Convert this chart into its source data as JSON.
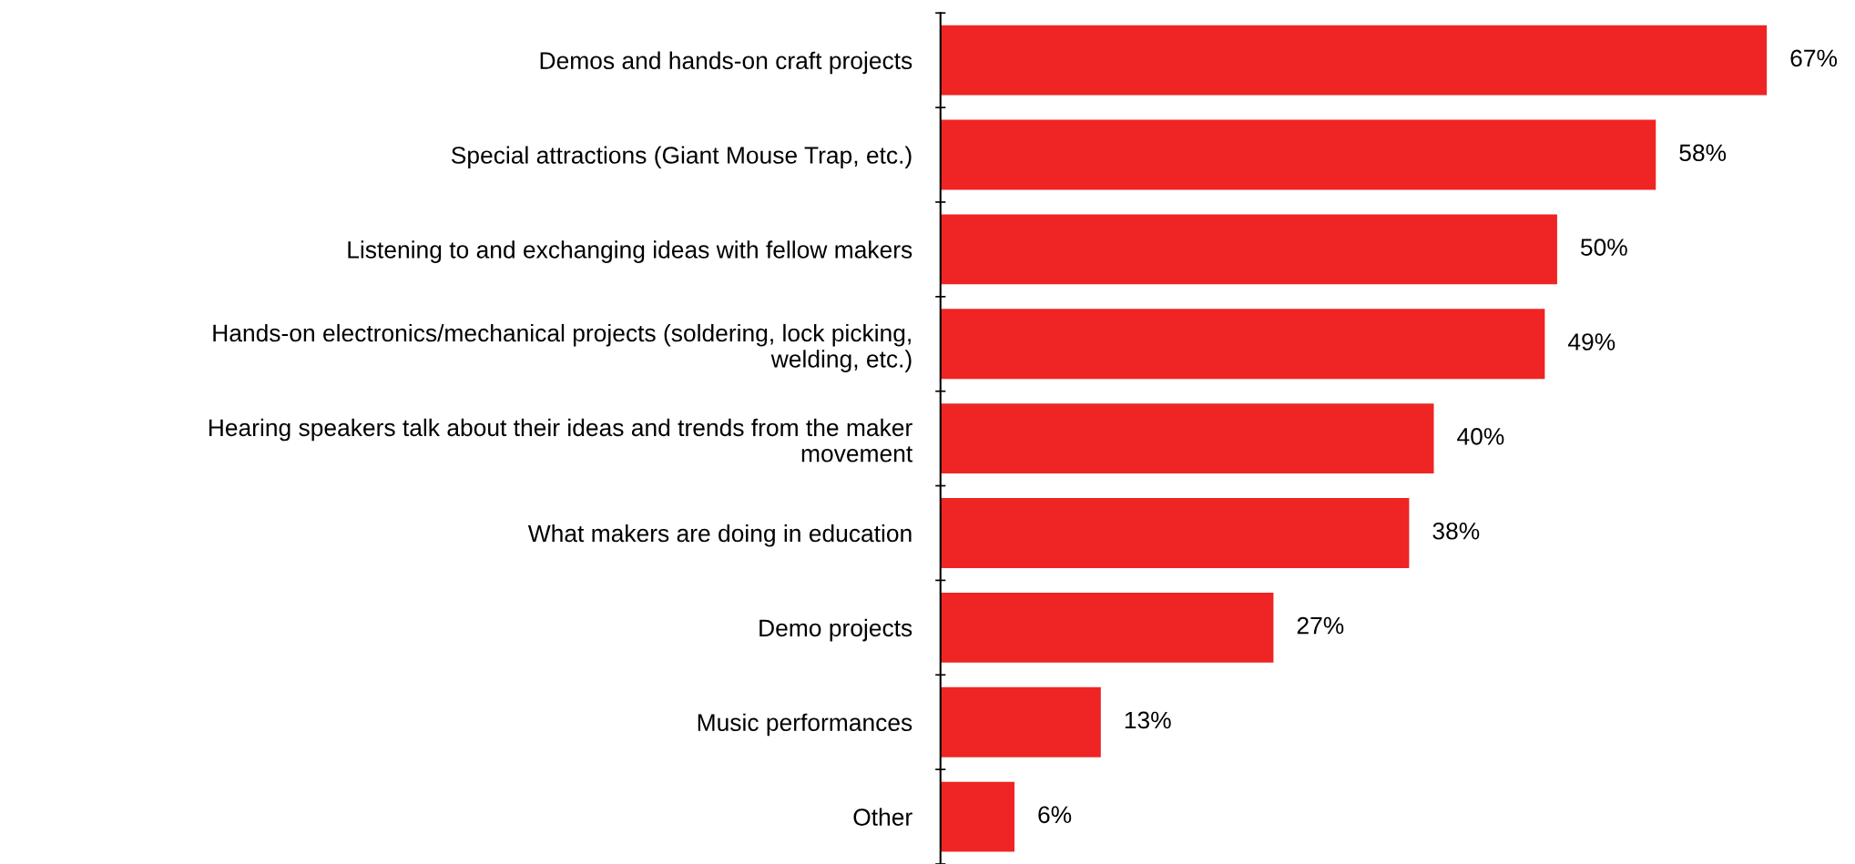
{
  "chart_data": {
    "type": "bar",
    "orientation": "horizontal",
    "categories": [
      "Demos and hands-on craft projects",
      "Special attractions (Giant Mouse Trap, etc.)",
      "Listening to and exchanging ideas with fellow makers",
      "Hands-on electronics/mechanical projects (soldering, lock picking,\nwelding, etc.)",
      "Hearing speakers talk about their ideas and trends from the maker\nmovement",
      "What makers are doing in education",
      "Demo projects",
      "Music performances",
      "Other"
    ],
    "values": [
      67,
      58,
      50,
      49,
      40,
      38,
      27,
      13,
      6
    ],
    "value_labels": [
      "67%",
      "58%",
      "50%",
      "49%",
      "40%",
      "38%",
      "27%",
      "13%",
      "6%"
    ],
    "color": "#ee2524",
    "grid": false,
    "legend": false
  }
}
